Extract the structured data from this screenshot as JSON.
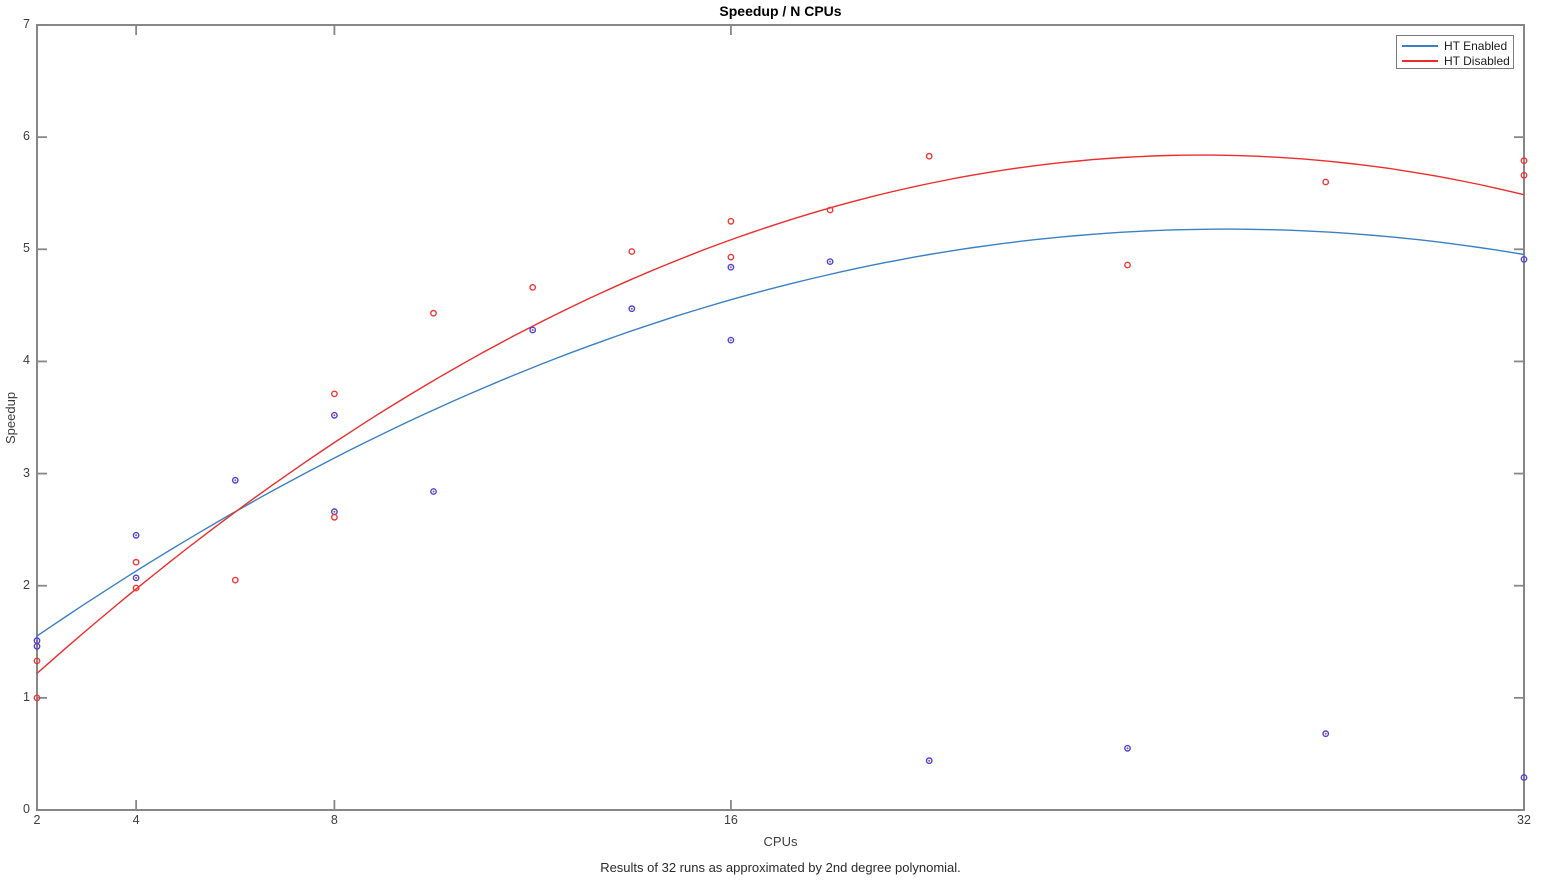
{
  "chart_data": {
    "type": "scatter",
    "title": "Speedup / N CPUs",
    "xlabel": "CPUs",
    "ylabel": "Speedup",
    "caption": "Results of 32 runs as approximated by 2nd degree polynomial.",
    "xlim": [
      2,
      32
    ],
    "ylim": [
      0,
      7
    ],
    "x_ticks": [
      2,
      4,
      8,
      16,
      32
    ],
    "y_ticks": [
      0,
      1,
      2,
      3,
      4,
      5,
      6,
      7
    ],
    "x_scale": "linear",
    "grid": false,
    "axis_color": "#878787",
    "legend_position": "top-right",
    "series": [
      {
        "name": "HT Enabled",
        "curve_color": "#3c80c4",
        "marker_edge_color": "#4444e0",
        "marker_center_color": "#d64545",
        "fit_curve": {
          "form": "y = peak + a*(x - vertex_x)^2",
          "vertex_x": 26,
          "peak": 5.18,
          "a": -0.0063
        },
        "points": [
          [
            2,
            1.51
          ],
          [
            2,
            1.46
          ],
          [
            4,
            2.45
          ],
          [
            4,
            2.07
          ],
          [
            6,
            2.94
          ],
          [
            8,
            3.52
          ],
          [
            8,
            2.66
          ],
          [
            10,
            2.84
          ],
          [
            12,
            4.28
          ],
          [
            14,
            4.47
          ],
          [
            16,
            4.84
          ],
          [
            16,
            4.19
          ],
          [
            18,
            4.89
          ],
          [
            20,
            0.44
          ],
          [
            24,
            0.55
          ],
          [
            28,
            0.68
          ],
          [
            32,
            4.91
          ],
          [
            32,
            0.29
          ]
        ]
      },
      {
        "name": "HT Disabled",
        "curve_color": "#ed2d2d",
        "marker_edge_color": "#ef3535",
        "marker_center_color": null,
        "fit_curve": {
          "form": "y = peak + a*(x - vertex_x)^2",
          "vertex_x": 25.5,
          "peak": 5.84,
          "a": -0.00837
        },
        "points": [
          [
            2,
            1.33
          ],
          [
            2,
            1.0
          ],
          [
            4,
            2.21
          ],
          [
            4,
            1.98
          ],
          [
            6,
            2.05
          ],
          [
            8,
            3.71
          ],
          [
            8,
            2.61
          ],
          [
            10,
            4.43
          ],
          [
            12,
            4.66
          ],
          [
            14,
            4.98
          ],
          [
            16,
            5.25
          ],
          [
            16,
            4.93
          ],
          [
            18,
            5.35
          ],
          [
            20,
            5.83
          ],
          [
            24,
            4.86
          ],
          [
            28,
            5.6
          ],
          [
            32,
            5.79
          ],
          [
            32,
            5.66
          ]
        ]
      }
    ]
  }
}
